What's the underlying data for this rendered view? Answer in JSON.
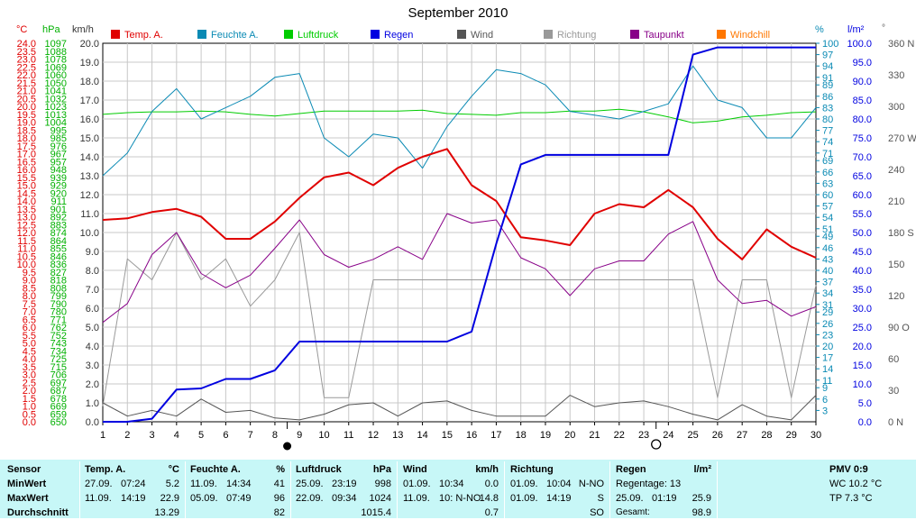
{
  "title": "September 2010",
  "legend": [
    {
      "label": "Temp. A.",
      "color": "#e00000"
    },
    {
      "label": "Feuchte A.",
      "color": "#0a8ab4"
    },
    {
      "label": "Luftdruck",
      "color": "#00cc00"
    },
    {
      "label": "Regen",
      "color": "#0000e0"
    },
    {
      "label": "Wind",
      "color": "#555555"
    },
    {
      "label": "Richtung",
      "color": "#999999"
    },
    {
      "label": "Taupunkt",
      "color": "#880088"
    },
    {
      "label": "Windchill",
      "color": "#ff7700"
    }
  ],
  "axis_units": {
    "temp": "°C",
    "pressure": "hPa",
    "wind": "km/h",
    "humidity": "%",
    "rain": "l/m²",
    "direction": "°"
  },
  "chart_data": {
    "type": "line",
    "title": "September 2010",
    "x": [
      1,
      2,
      3,
      4,
      5,
      6,
      7,
      8,
      9,
      10,
      11,
      12,
      13,
      14,
      15,
      16,
      17,
      18,
      19,
      20,
      21,
      22,
      23,
      24,
      25,
      26,
      27,
      28,
      29,
      30
    ],
    "axes": {
      "temp": {
        "range": [
          0,
          24
        ],
        "step": 0.5
      },
      "pressure": {
        "range": [
          650,
          1097
        ]
      },
      "wind": {
        "range": [
          0,
          20
        ],
        "step": 1
      },
      "humidity": {
        "range": [
          0,
          100
        ]
      },
      "rain": {
        "range": [
          0,
          100
        ],
        "step": 5
      },
      "direction": {
        "range": [
          0,
          360
        ],
        "ticks": [
          0,
          30,
          60,
          90,
          120,
          150,
          180,
          210,
          240,
          270,
          300,
          330,
          360
        ],
        "tick_labels": [
          "0 N",
          "30",
          "60",
          "90 O",
          "120",
          "150",
          "180 S",
          "210",
          "240",
          "270 W",
          "300",
          "330",
          "360 N"
        ]
      }
    },
    "grid": true,
    "series": [
      {
        "name": "Temp. A.",
        "axis": "temp",
        "color": "#e00000",
        "width": 2,
        "values": [
          12.8,
          12.9,
          13.3,
          13.5,
          13.0,
          11.6,
          11.6,
          12.7,
          14.2,
          15.5,
          15.8,
          15.0,
          16.1,
          16.8,
          17.3,
          15.0,
          14.0,
          11.7,
          11.5,
          11.2,
          13.2,
          13.8,
          13.6,
          14.7,
          13.6,
          11.6,
          10.3,
          12.2,
          11.1,
          10.4
        ]
      },
      {
        "name": "Feuchte A.",
        "axis": "humidity",
        "color": "#0a8ab4",
        "width": 1,
        "values": [
          65,
          71,
          82,
          88,
          80,
          83,
          86,
          91,
          92,
          75,
          70,
          76,
          75,
          67,
          78,
          86,
          93,
          92,
          89,
          82,
          81,
          80,
          82,
          84,
          94,
          85,
          83,
          75,
          75,
          83
        ]
      },
      {
        "name": "Luftdruck",
        "axis": "pressure",
        "color": "#00cc00",
        "width": 1,
        "values": [
          1013,
          1015,
          1016,
          1016,
          1017,
          1016,
          1013,
          1011,
          1014,
          1017,
          1017,
          1017,
          1017,
          1018,
          1014,
          1013,
          1012,
          1015,
          1015,
          1017,
          1017,
          1019,
          1016,
          1010,
          1003,
          1005,
          1010,
          1012,
          1015,
          1016
        ]
      },
      {
        "name": "Regen",
        "axis": "rain",
        "color": "#0000e0",
        "width": 2,
        "values": [
          0,
          0,
          0.8,
          8.5,
          8.8,
          11.3,
          11.3,
          13.6,
          21.2,
          21.2,
          21.2,
          21.2,
          21.2,
          21.2,
          21.2,
          23.8,
          47,
          68,
          70.5,
          70.5,
          70.5,
          70.5,
          70.5,
          70.5,
          97,
          98.9,
          98.9,
          98.9,
          98.9,
          98.9
        ]
      },
      {
        "name": "Wind",
        "axis": "wind",
        "color": "#555555",
        "width": 1,
        "values": [
          1.0,
          0.3,
          0.6,
          0.3,
          1.2,
          0.5,
          0.6,
          0.2,
          0.1,
          0.4,
          0.9,
          1.0,
          0.3,
          1.0,
          1.1,
          0.6,
          0.3,
          0.3,
          0.3,
          1.4,
          0.8,
          1.0,
          1.1,
          0.8,
          0.4,
          0.1,
          0.9,
          0.3,
          0.1,
          1.4
        ]
      },
      {
        "name": "Richtung",
        "axis": "direction",
        "color": "#999999",
        "width": 1,
        "values": [
          15,
          155,
          135,
          180,
          135,
          155,
          110,
          135,
          180,
          23,
          23,
          135,
          135,
          135,
          135,
          135,
          135,
          135,
          135,
          135,
          135,
          135,
          135,
          135,
          135,
          23,
          135,
          135,
          23,
          130
        ]
      },
      {
        "name": "Taupunkt",
        "axis": "temp",
        "color": "#880088",
        "width": 1,
        "values": [
          6.3,
          7.5,
          10.6,
          12.0,
          9.4,
          8.5,
          9.3,
          11.0,
          12.8,
          10.6,
          9.8,
          10.3,
          11.1,
          10.3,
          13.2,
          12.6,
          12.8,
          10.4,
          9.7,
          8.0,
          9.7,
          10.2,
          10.2,
          11.9,
          12.7,
          9.0,
          7.5,
          7.7,
          6.7,
          7.3
        ]
      }
    ],
    "markers": [
      {
        "x": 8.5,
        "symbol": "new-moon"
      },
      {
        "x": 23.5,
        "symbol": "full-moon"
      }
    ]
  },
  "summary": {
    "sensor": {
      "header": "Sensor",
      "rows": [
        "MinWert",
        "MaxWert",
        "Durchschnitt"
      ]
    },
    "temp": {
      "header": "Temp. A.",
      "unit": "°C",
      "min_date": "27.09.",
      "min_time": "07:24",
      "min": "5.2",
      "max_date": "11.09.",
      "max_time": "14:19",
      "max": "22.9",
      "avg": "13.29"
    },
    "humidity": {
      "header": "Feuchte A.",
      "unit": "%",
      "min_date": "11.09.",
      "min_time": "14:34",
      "min": "41",
      "max_date": "05.09.",
      "max_time": "07:49",
      "max": "96",
      "avg": "82"
    },
    "pressure": {
      "header": "Luftdruck",
      "unit": "hPa",
      "min_date": "25.09.",
      "min_time": "23:19",
      "min": "998",
      "max_date": "22.09.",
      "max_time": "09:34",
      "max": "1024",
      "avg": "1015.4"
    },
    "wind": {
      "header": "Wind",
      "unit": "km/h",
      "min_date": "01.09.",
      "min_time": "10:34",
      "min": "0.0",
      "max_date": "11.09.",
      "max_time": "10: N-NO",
      "max": "14.8",
      "avg": "0.7"
    },
    "direction": {
      "header": "Richtung",
      "min_date": "01.09.",
      "min_time": "10:04",
      "min": "N-NO",
      "max_date": "01.09.",
      "max_time": "14:19",
      "max": "S",
      "avg": "SO"
    },
    "rain": {
      "header": "Regen",
      "unit": "l/m²",
      "line1": "Regentage: 13",
      "line2_date": "25.09.",
      "line2_time": "01:19",
      "line2": "25.9",
      "line3_label": "Gesamt:",
      "line3": "98.9"
    },
    "pmv": {
      "header": "PMV 0:9",
      "wc": "WC 10.2 °C",
      "tp": "TP 7.3 °C"
    }
  }
}
